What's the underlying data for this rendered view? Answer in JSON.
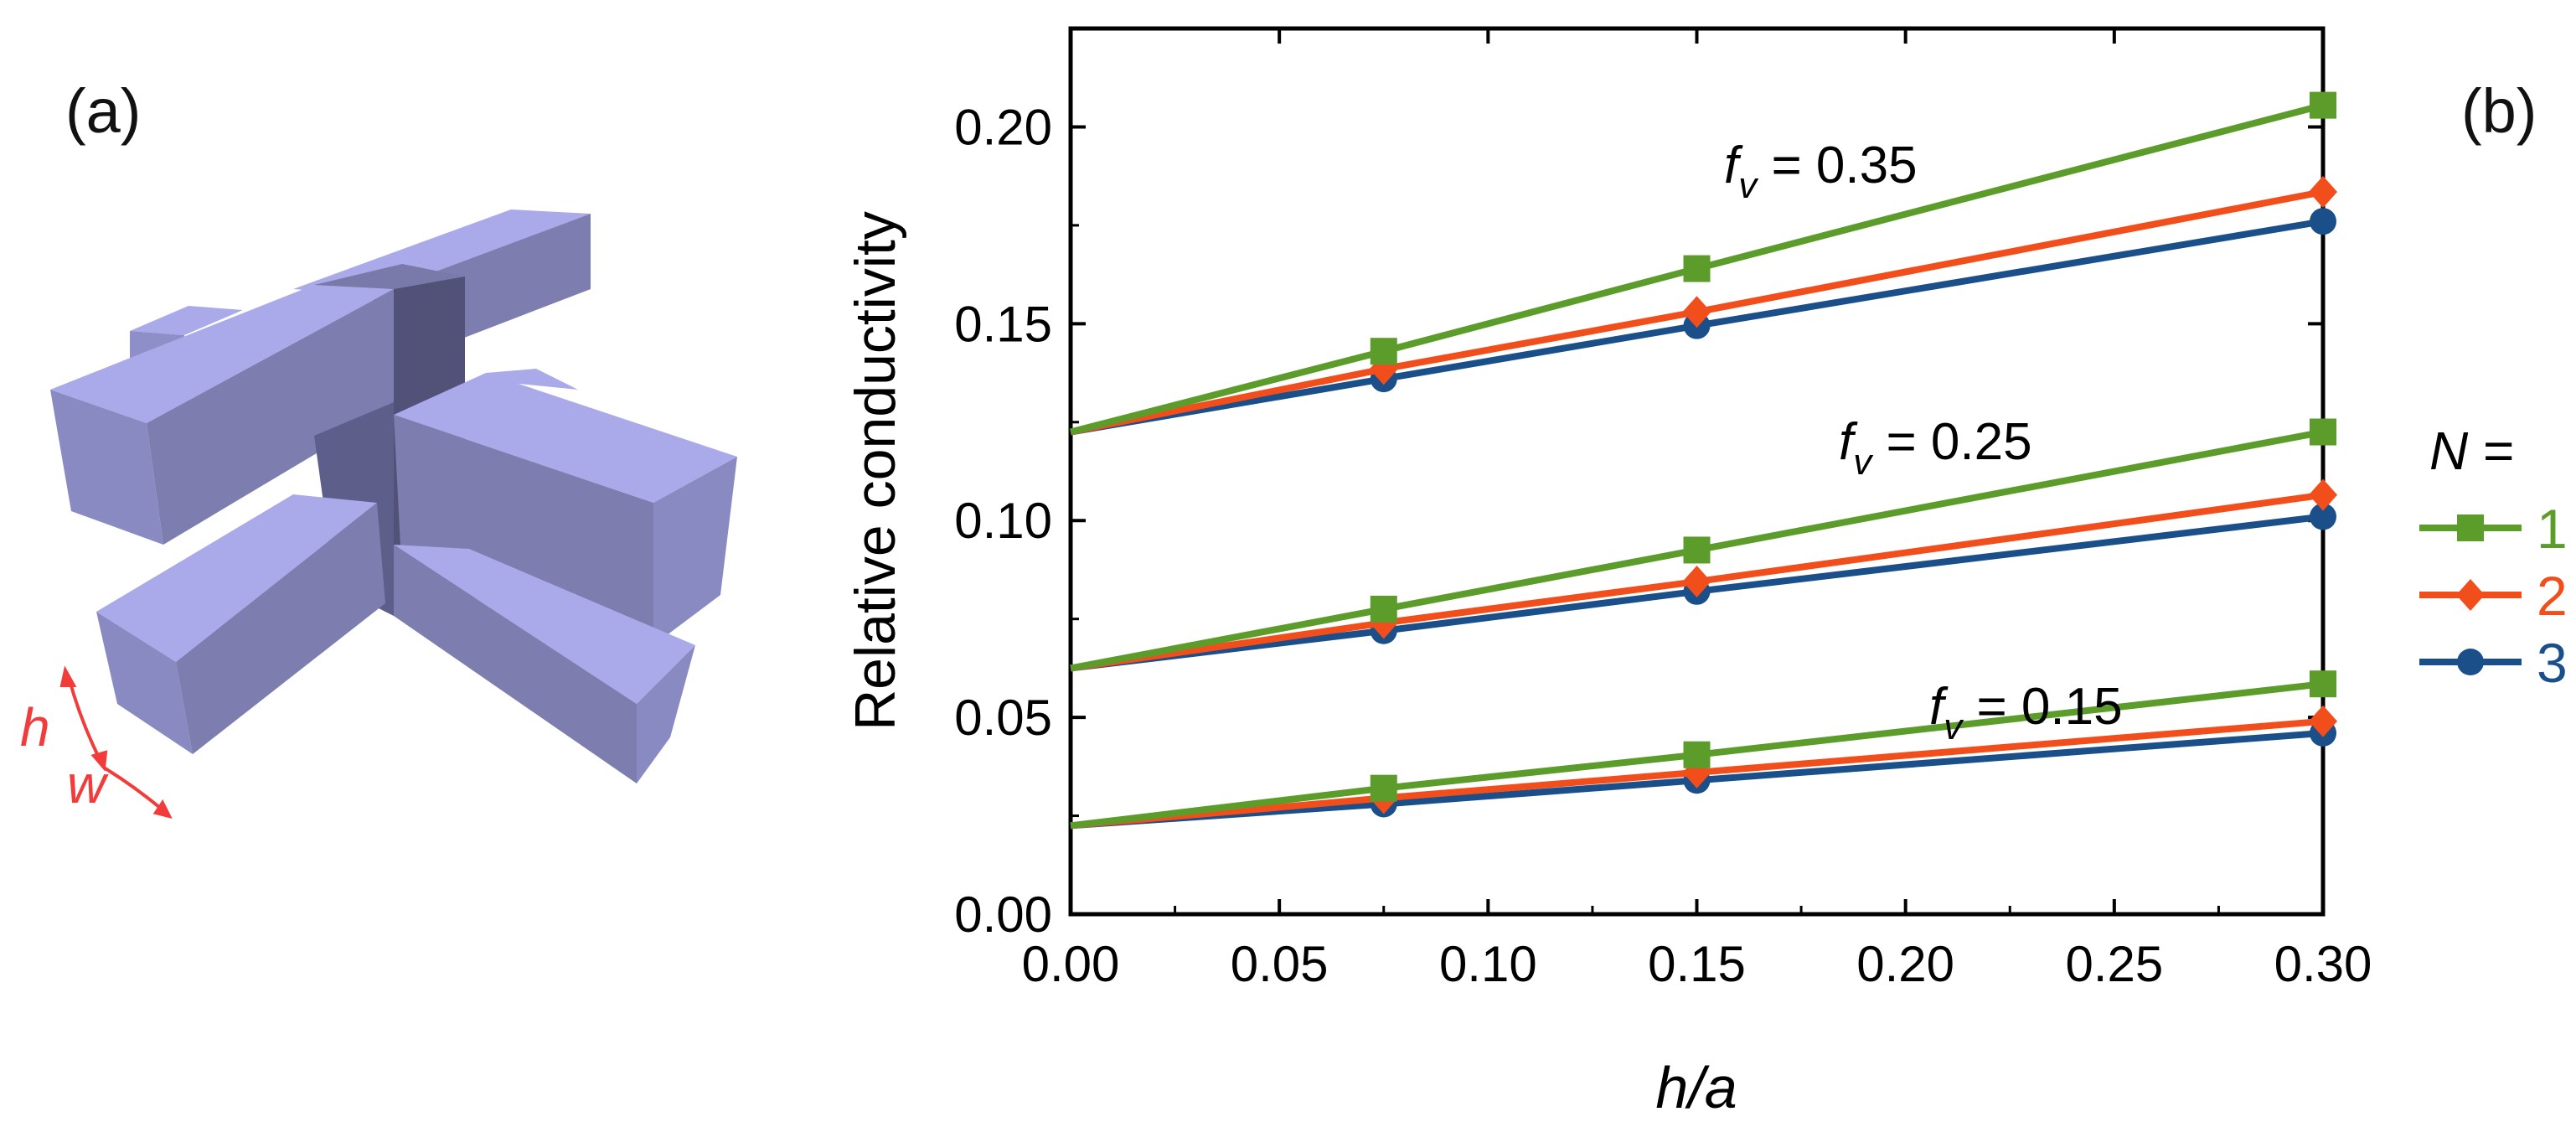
{
  "panel_a": {
    "label": "(a)",
    "dim_h": "h",
    "dim_w": "w",
    "block_color": "#aaaaea",
    "annotation_color": "#f23c3c"
  },
  "panel_b": {
    "label": "(b)"
  },
  "chart_data": {
    "type": "line",
    "title": "",
    "xlabel": "h/a",
    "ylabel": "Relative conductivity",
    "xlim": [
      0.0,
      0.3
    ],
    "ylim": [
      0.0,
      0.225
    ],
    "x_ticks": [
      "0.00",
      "0.05",
      "0.10",
      "0.15",
      "0.20",
      "0.25",
      "0.30"
    ],
    "y_ticks": [
      "0.00",
      "0.05",
      "0.10",
      "0.15",
      "0.20"
    ],
    "x": [
      0.0,
      0.075,
      0.15,
      0.3
    ],
    "legend": {
      "title": "N =",
      "entries": [
        "1",
        "2",
        "3"
      ],
      "placement": "right"
    },
    "groups": [
      {
        "label_f": "f",
        "label_sub": "v",
        "label_value": " = 0.35",
        "series": [
          {
            "name": "1",
            "values": [
              0.1225,
              0.143,
              0.164,
              0.2055
            ]
          },
          {
            "name": "2",
            "values": [
              0.1225,
              0.1385,
              0.153,
              0.1835
            ]
          },
          {
            "name": "3",
            "values": [
              0.1225,
              0.136,
              0.1495,
              0.176
            ]
          }
        ]
      },
      {
        "label_f": "f",
        "label_sub": "v",
        "label_value": " = 0.25",
        "series": [
          {
            "name": "1",
            "values": [
              0.0625,
              0.0775,
              0.0925,
              0.1225
            ]
          },
          {
            "name": "2",
            "values": [
              0.0625,
              0.074,
              0.0845,
              0.1065
            ]
          },
          {
            "name": "3",
            "values": [
              0.0625,
              0.072,
              0.082,
              0.101
            ]
          }
        ]
      },
      {
        "label_f": "f",
        "label_sub": "v",
        "label_value": " = 0.15",
        "series": [
          {
            "name": "1",
            "values": [
              0.0225,
              0.032,
              0.0405,
              0.0585
            ]
          },
          {
            "name": "2",
            "values": [
              0.0225,
              0.0295,
              0.036,
              0.049
            ]
          },
          {
            "name": "3",
            "values": [
              0.0225,
              0.028,
              0.034,
              0.046
            ]
          }
        ]
      }
    ],
    "colors": {
      "1": "#5b9c2a",
      "2": "#f24e1c",
      "3": "#1a4f8a"
    },
    "markers": {
      "1": "square",
      "2": "diamond",
      "3": "circle"
    }
  }
}
